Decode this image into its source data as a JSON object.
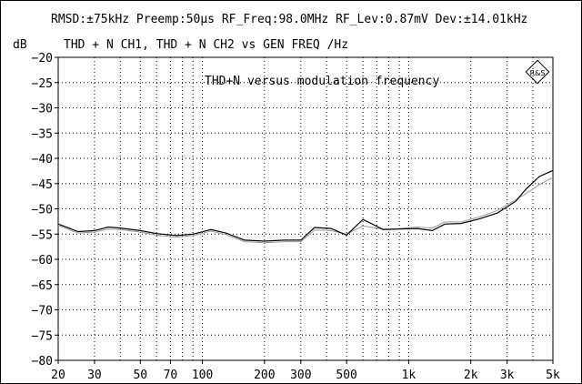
{
  "header": {
    "settings_line": "RMSD:±75kHz Preemp:50μs RF_Freq:98.0MHz RF_Lev:0.87mV Dev:±14.01kHz",
    "y_unit": "dB",
    "trace_line": "THD + N CH1,  THD + N CH2 vs   GEN FREQ /Hz"
  },
  "logo": {
    "text": "R&S",
    "icon": "rohde-schwarz-diamond-logo"
  },
  "chart_data": {
    "type": "line",
    "title": "THD+N versus modulation frequency",
    "xlabel": "GEN FREQ /Hz",
    "ylabel": "dB",
    "x_scale": "log",
    "xlim": [
      20,
      5000
    ],
    "ylim": [
      -80,
      -20
    ],
    "grid": true,
    "x_tick_labels": [
      {
        "v": 20,
        "label": "20"
      },
      {
        "v": 30,
        "label": "30"
      },
      {
        "v": 50,
        "label": "50"
      },
      {
        "v": 70,
        "label": "70"
      },
      {
        "v": 100,
        "label": "100"
      },
      {
        "v": 200,
        "label": "200"
      },
      {
        "v": 300,
        "label": "300"
      },
      {
        "v": 500,
        "label": "500"
      },
      {
        "v": 1000,
        "label": "1k"
      },
      {
        "v": 2000,
        "label": "2k"
      },
      {
        "v": 3000,
        "label": "3k"
      },
      {
        "v": 5000,
        "label": "5k"
      }
    ],
    "y_ticks": [
      -20,
      -25,
      -30,
      -35,
      -40,
      -45,
      -50,
      -55,
      -60,
      -65,
      -70,
      -75,
      -80
    ],
    "y_tick_labels": [
      "−20",
      "−25",
      "−30",
      "−35",
      "−40",
      "−45",
      "−50",
      "−55",
      "−60",
      "−65",
      "−70",
      "−75",
      "−80"
    ],
    "colors": {
      "ch1": "#000000",
      "ch2": "#9a9a9a",
      "grid": "#000000"
    },
    "series": [
      {
        "name": "THD + N CH1",
        "x": [
          20,
          25,
          30,
          35,
          40,
          50,
          60,
          75,
          90,
          110,
          130,
          160,
          200,
          250,
          300,
          350,
          420,
          500,
          600,
          650,
          750,
          900,
          1100,
          1300,
          1500,
          1800,
          2200,
          2700,
          3300,
          3700,
          4300,
          5000
        ],
        "y": [
          -53,
          -54.5,
          -54.3,
          -53.6,
          -53.8,
          -54.3,
          -54.9,
          -55.3,
          -55.0,
          -54.1,
          -54.8,
          -56.2,
          -56.4,
          -56.2,
          -56.2,
          -53.7,
          -53.9,
          -55.2,
          -52.1,
          -52.8,
          -54.1,
          -54.0,
          -53.9,
          -54.3,
          -53.0,
          -52.9,
          -52.0,
          -50.8,
          -48.5,
          -46.1,
          -43.6,
          -42.4
        ]
      },
      {
        "name": "THD + N CH2",
        "x": [
          20,
          25,
          30,
          35,
          40,
          50,
          60,
          75,
          90,
          110,
          130,
          160,
          200,
          250,
          300,
          350,
          420,
          500,
          600,
          650,
          750,
          900,
          1100,
          1300,
          1500,
          1800,
          2200,
          2700,
          3300,
          3700,
          4300,
          5000
        ],
        "y": [
          -53.3,
          -54.8,
          -54.6,
          -54.0,
          -54.1,
          -54.6,
          -55.2,
          -55.6,
          -55.3,
          -54.4,
          -55.1,
          -56.5,
          -56.7,
          -56.5,
          -56.5,
          -54.2,
          -54.3,
          -55.0,
          -53.4,
          -53.6,
          -54.0,
          -53.9,
          -53.6,
          -53.8,
          -52.6,
          -52.6,
          -51.6,
          -50.3,
          -48.2,
          -47.0,
          -45.2,
          -43.8
        ]
      }
    ]
  }
}
